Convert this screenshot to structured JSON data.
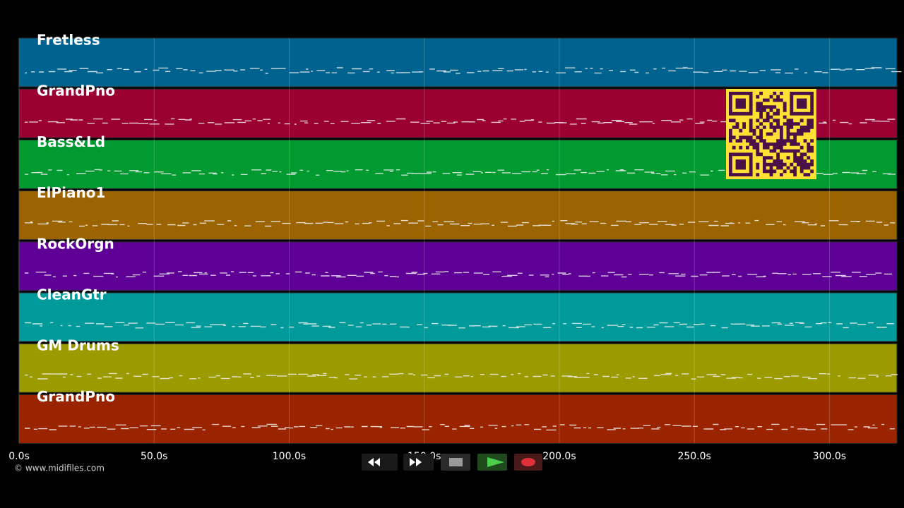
{
  "tracks": [
    {
      "name": "Fretless",
      "color": "#00628f"
    },
    {
      "name": "GrandPno",
      "color": "#9b0033"
    },
    {
      "name": "Bass&Ld",
      "color": "#009a30"
    },
    {
      "name": "ElPiano1",
      "color": "#9b6400"
    },
    {
      "name": "RockOrgn",
      "color": "#5e0096"
    },
    {
      "name": "CleanGtr",
      "color": "#009a9a"
    },
    {
      "name": "GM Drums",
      "color": "#9b9b00"
    },
    {
      "name": "GrandPno",
      "color": "#9b2400"
    }
  ],
  "time_axis": {
    "xlim": [
      0,
      325
    ],
    "ticks": [
      {
        "value": 0,
        "label": "0.0s"
      },
      {
        "value": 50,
        "label": "50.0s"
      },
      {
        "value": 100,
        "label": "100.0s"
      },
      {
        "value": 150,
        "label": "150.0s"
      },
      {
        "value": 200,
        "label": "200.0s"
      },
      {
        "value": 250,
        "label": "250.0s"
      },
      {
        "value": 300,
        "label": "300.0s"
      }
    ]
  },
  "copyright": "© www.midifiles.com"
}
